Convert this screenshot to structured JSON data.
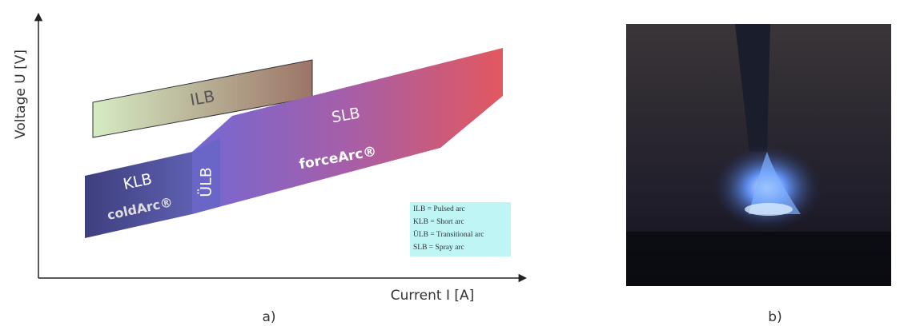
{
  "diagram": {
    "y_axis_label": "Voltage U [V]",
    "x_axis_label": "Current I [A]",
    "regions": {
      "ilb": {
        "label": "ILB"
      },
      "klb": {
        "label": "KLB",
        "process": "coldArc®"
      },
      "ulb": {
        "label": "ÜLB"
      },
      "slb": {
        "label": "SLB",
        "process": "forceArc®"
      }
    },
    "legend": [
      "ILB  = Pulsed arc",
      "KLB = Short arc",
      "ÜLB = Transitional arc",
      "SLB = Spray arc"
    ],
    "captions": [
      "a)",
      "b)"
    ]
  }
}
